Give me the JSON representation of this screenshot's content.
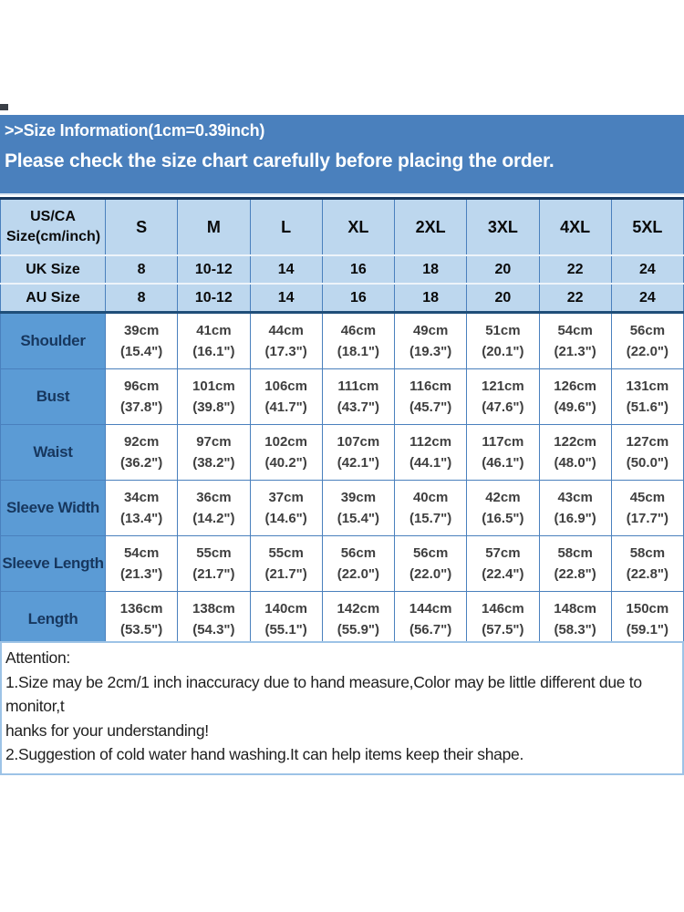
{
  "banner": {
    "line1": ">>Size Information(1cm=0.39inch)",
    "line2": "Please check the size chart carefully before placing the order."
  },
  "size_chart": {
    "corner_header": "US/CA Size(cm/inch)",
    "size_columns": [
      "S",
      "M",
      "L",
      "XL",
      "2XL",
      "3XL",
      "4XL",
      "5XL"
    ],
    "conversion_rows": [
      {
        "label": "UK Size",
        "values": [
          "8",
          "10-12",
          "14",
          "16",
          "18",
          "20",
          "22",
          "24"
        ]
      },
      {
        "label": "AU Size",
        "values": [
          "8",
          "10-12",
          "14",
          "16",
          "18",
          "20",
          "22",
          "24"
        ]
      }
    ],
    "measurement_rows": [
      {
        "label": "Shoulder",
        "cm": [
          "39cm",
          "41cm",
          "44cm",
          "46cm",
          "49cm",
          "51cm",
          "54cm",
          "56cm"
        ],
        "inch": [
          "(15.4\")",
          "(16.1\")",
          "(17.3\")",
          "(18.1\")",
          "(19.3\")",
          "(20.1\")",
          "(21.3\")",
          "(22.0\")"
        ]
      },
      {
        "label": "Bust",
        "cm": [
          "96cm",
          "101cm",
          "106cm",
          "111cm",
          "116cm",
          "121cm",
          "126cm",
          "131cm"
        ],
        "inch": [
          "(37.8\")",
          "(39.8\")",
          "(41.7\")",
          "(43.7\")",
          "(45.7\")",
          "(47.6\")",
          "(49.6\")",
          "(51.6\")"
        ]
      },
      {
        "label": "Waist",
        "cm": [
          "92cm",
          "97cm",
          "102cm",
          "107cm",
          "112cm",
          "117cm",
          "122cm",
          "127cm"
        ],
        "inch": [
          "(36.2\")",
          "(38.2\")",
          "(40.2\")",
          "(42.1\")",
          "(44.1\")",
          "(46.1\")",
          "(48.0\")",
          "(50.0\")"
        ]
      },
      {
        "label": "Sleeve Width",
        "cm": [
          "34cm",
          "36cm",
          "37cm",
          "39cm",
          "40cm",
          "42cm",
          "43cm",
          "45cm"
        ],
        "inch": [
          "(13.4\")",
          "(14.2\")",
          "(14.6\")",
          "(15.4\")",
          "(15.7\")",
          "(16.5\")",
          "(16.9\")",
          "(17.7\")"
        ]
      },
      {
        "label": "Sleeve Length",
        "cm": [
          "54cm",
          "55cm",
          "55cm",
          "56cm",
          "56cm",
          "57cm",
          "58cm",
          "58cm"
        ],
        "inch": [
          "(21.3\")",
          "(21.7\")",
          "(21.7\")",
          "(22.0\")",
          "(22.0\")",
          "(22.4\")",
          "(22.8\")",
          "(22.8\")"
        ]
      },
      {
        "label": "Length",
        "cm": [
          "136cm",
          "138cm",
          "140cm",
          "142cm",
          "144cm",
          "146cm",
          "148cm",
          "150cm"
        ],
        "inch": [
          "(53.5\")",
          "(54.3\")",
          "(55.1\")",
          "(55.9\")",
          "(56.7\")",
          "(57.5\")",
          "(58.3\")",
          "(59.1\")"
        ]
      }
    ]
  },
  "attention": {
    "title": "Attention:",
    "note1_line1": "1.Size may be 2cm/1 inch inaccuracy due to hand measure,Color may be little different due to monitor,t",
    "note1_line2": "hanks for your understanding!",
    "note2": "2.Suggestion of cold water hand washing.It can help items keep their shape."
  },
  "colors": {
    "banner_blue": "#4a80bd",
    "header_light_blue": "#bdd7ee",
    "row_header_blue": "#5b9bd5",
    "dark_navy": "#17375e",
    "grid_blue": "#4a80bd",
    "attention_border": "#9dc3e6"
  }
}
